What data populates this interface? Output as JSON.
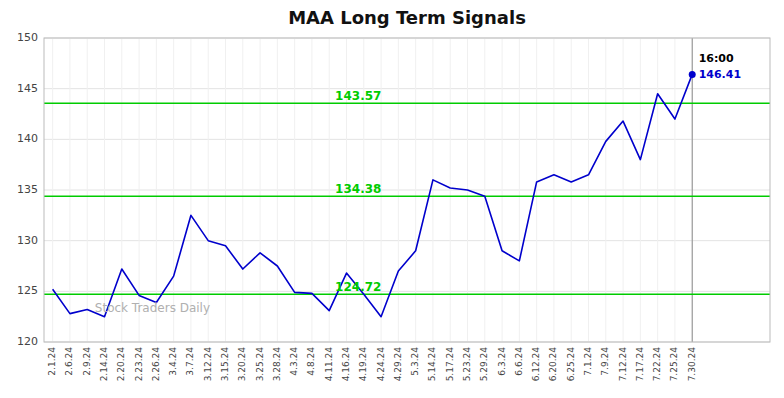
{
  "chart_data": {
    "type": "line",
    "title": "MAA Long Term Signals",
    "categories": [
      "2.1.24",
      "2.6.24",
      "2.9.24",
      "2.14.24",
      "2.20.24",
      "2.23.24",
      "2.26.24",
      "3.4.24",
      "3.7.24",
      "3.12.24",
      "3.15.24",
      "3.20.24",
      "3.25.24",
      "3.28.24",
      "4.3.24",
      "4.8.24",
      "4.11.24",
      "4.16.24",
      "4.19.24",
      "4.24.24",
      "4.29.24",
      "5.3.24",
      "5.14.24",
      "5.17.24",
      "5.23.24",
      "5.29.24",
      "6.3.24",
      "6.6.24",
      "6.12.24",
      "6.20.24",
      "6.25.24",
      "7.1.24",
      "7.9.24",
      "7.12.24",
      "7.17.24",
      "7.22.24",
      "7.25.24",
      "7.30.24"
    ],
    "values": [
      125.2,
      122.8,
      123.2,
      122.5,
      127.2,
      124.6,
      123.9,
      126.5,
      132.5,
      130.0,
      129.5,
      127.2,
      128.8,
      127.5,
      124.9,
      124.8,
      123.1,
      126.8,
      124.72,
      122.5,
      127.0,
      129.0,
      136.0,
      135.2,
      135.0,
      134.38,
      129.0,
      128.0,
      135.8,
      136.5,
      135.8,
      136.5,
      139.8,
      141.8,
      138.0,
      144.5,
      142.0,
      146.41
    ],
    "color": "#0000cc",
    "ylim": [
      120,
      150
    ],
    "yticks": [
      120,
      125,
      130,
      135,
      140,
      145,
      150
    ],
    "grid": true,
    "reference_lines": [
      {
        "value": 124.72,
        "label": "124.72",
        "color": "#00cc00"
      },
      {
        "value": 134.38,
        "label": "134.38",
        "color": "#00cc00"
      },
      {
        "value": 143.57,
        "label": "143.57",
        "color": "#00cc00"
      }
    ],
    "last_label": "16:00",
    "last_value_label": "146.41",
    "watermark": "Stock Traders Daily"
  }
}
